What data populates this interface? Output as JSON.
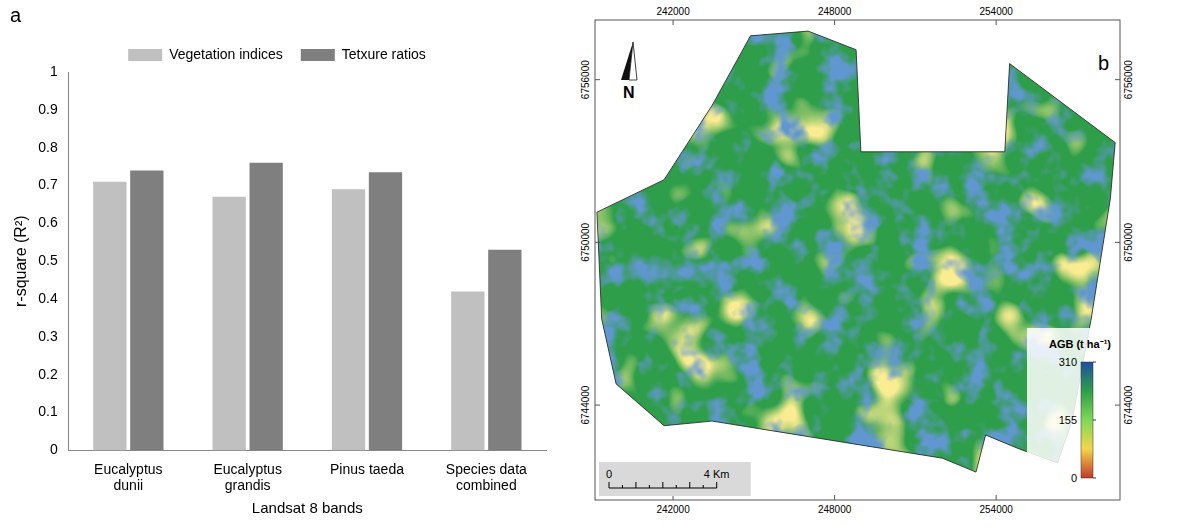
{
  "chart_data": {
    "type": "bar",
    "annotations": [
      "a"
    ],
    "x_label": "Landsat 8 bands",
    "y_label": "r-square (R²)",
    "categories": [
      "Eucalyptus dunii",
      "Eucalyptus grandis",
      "Pinus taeda",
      "Species data combined"
    ],
    "series": [
      {
        "name": "Vegetation indices",
        "color": "#c0c0c0",
        "values": [
          0.71,
          0.67,
          0.69,
          0.42
        ]
      },
      {
        "name": "Tetxure ratios",
        "color": "#7f7f7f",
        "values": [
          0.74,
          0.76,
          0.735,
          0.53
        ]
      }
    ],
    "ylim": [
      0,
      1
    ],
    "yticks": [
      0,
      0.1,
      0.2,
      0.3,
      0.4,
      0.5,
      0.6,
      0.7,
      0.8,
      0.9,
      1
    ],
    "grid": false,
    "legend": "top"
  },
  "map": {
    "label": "b",
    "north": "N",
    "xlim": [
      239100,
      258600
    ],
    "ylim": [
      6740500,
      6758200
    ],
    "xticks": [
      242000,
      248000,
      254000
    ],
    "yticks": [
      6744000,
      6750000,
      6756000
    ],
    "colorbar": {
      "title": "AGB (t ha⁻¹)",
      "range": [
        0,
        310
      ],
      "ticks": [
        0,
        155,
        310
      ],
      "colors": [
        "#c0392b",
        "#f5d547",
        "#7ed957",
        "#2e9e4a",
        "#1f4fa0"
      ]
    },
    "scale_bar": {
      "ticks": [
        {
          "value": 0,
          "label": "0"
        },
        {
          "value": 4,
          "label": "4 Km"
        }
      ]
    }
  }
}
